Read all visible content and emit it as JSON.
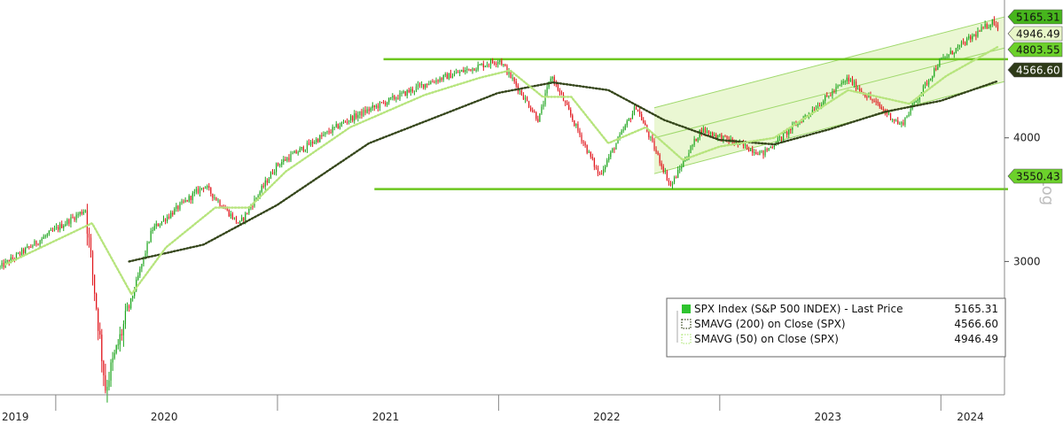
{
  "chart_data": {
    "type": "candlestick",
    "yscale": "log",
    "ylabel": "Log",
    "ylim": [
      2200,
      5400
    ],
    "xlim": [
      "2019-10-01",
      "2024-04-15"
    ],
    "y_ticks": [
      3000,
      4000
    ],
    "x_ticks": [
      "2019",
      "2020",
      "2021",
      "2022",
      "2023",
      "2024"
    ],
    "horizontal_levels": [
      4803.55,
      3550.43
    ],
    "trend_channel": {
      "start": "2022-09-15",
      "end": "2024-04-15",
      "upper": [
        4290,
        5300
      ],
      "mid": [
        4000,
        4930
      ],
      "lower": [
        3680,
        4560
      ]
    },
    "price_tags": [
      {
        "label": "5165.31",
        "value": 5165.31,
        "bg": "#46b51c",
        "fg": "#111111"
      },
      {
        "label": "4946.49",
        "value": 4946.49,
        "bg": "#e8f7c8",
        "fg": "#111111"
      },
      {
        "label": "4803.55",
        "value": 4803.55,
        "bg": "#6cd12b",
        "fg": "#111111"
      },
      {
        "label": "4566.60",
        "value": 4566.6,
        "bg": "#2e3a18",
        "fg": "#ffffff"
      },
      {
        "label": "3550.43",
        "value": 3550.43,
        "bg": "#6cd12b",
        "fg": "#111111"
      }
    ],
    "series": [
      {
        "name": "SPX Index (S&P 500 INDEX) - Last Price",
        "last": "5165.31",
        "key_points": [
          [
            "2019-10-01",
            2960
          ],
          [
            "2019-12-31",
            3230
          ],
          [
            "2020-02-19",
            3386
          ],
          [
            "2020-03-23",
            2237
          ],
          [
            "2020-06-08",
            3232
          ],
          [
            "2020-09-02",
            3580
          ],
          [
            "2020-10-30",
            3270
          ],
          [
            "2020-12-31",
            3756
          ],
          [
            "2021-04-30",
            4181
          ],
          [
            "2021-09-02",
            4537
          ],
          [
            "2021-11-18",
            4704
          ],
          [
            "2022-01-03",
            4796
          ],
          [
            "2022-03-08",
            4170
          ],
          [
            "2022-03-29",
            4630
          ],
          [
            "2022-06-16",
            3666
          ],
          [
            "2022-08-16",
            4305
          ],
          [
            "2022-10-12",
            3577
          ],
          [
            "2022-12-01",
            4080
          ],
          [
            "2023-03-13",
            3855
          ],
          [
            "2023-07-31",
            4588
          ],
          [
            "2023-10-27",
            4117
          ],
          [
            "2023-12-29",
            4770
          ],
          [
            "2024-03-28",
            5254
          ],
          [
            "2024-04-05",
            5165
          ]
        ]
      },
      {
        "name": "SMAVG (200)  on Close (SPX)",
        "last": "4566.60",
        "key_points": [
          [
            "2020-05-01",
            3000
          ],
          [
            "2020-09-01",
            3120
          ],
          [
            "2020-12-31",
            3420
          ],
          [
            "2021-06-01",
            3950
          ],
          [
            "2021-12-31",
            4440
          ],
          [
            "2022-04-01",
            4550
          ],
          [
            "2022-07-01",
            4470
          ],
          [
            "2022-10-01",
            4170
          ],
          [
            "2023-01-01",
            3980
          ],
          [
            "2023-04-01",
            3940
          ],
          [
            "2023-07-01",
            4080
          ],
          [
            "2023-10-01",
            4250
          ],
          [
            "2024-01-01",
            4360
          ],
          [
            "2024-04-05",
            4566.6
          ]
        ]
      },
      {
        "name": "SMAVG (50)  on Close (SPX)",
        "last": "4946.49",
        "key_points": [
          [
            "2019-10-10",
            2980
          ],
          [
            "2020-01-15",
            3180
          ],
          [
            "2020-03-01",
            3280
          ],
          [
            "2020-05-05",
            2780
          ],
          [
            "2020-07-01",
            3100
          ],
          [
            "2020-09-20",
            3400
          ],
          [
            "2020-11-15",
            3400
          ],
          [
            "2021-01-15",
            3700
          ],
          [
            "2021-05-01",
            4100
          ],
          [
            "2021-09-01",
            4420
          ],
          [
            "2021-12-01",
            4600
          ],
          [
            "2022-01-20",
            4680
          ],
          [
            "2022-03-15",
            4400
          ],
          [
            "2022-05-01",
            4400
          ],
          [
            "2022-07-01",
            3950
          ],
          [
            "2022-09-01",
            4100
          ],
          [
            "2022-11-01",
            3800
          ],
          [
            "2023-01-01",
            3920
          ],
          [
            "2023-04-01",
            4000
          ],
          [
            "2023-08-01",
            4470
          ],
          [
            "2023-11-10",
            4330
          ],
          [
            "2024-01-10",
            4620
          ],
          [
            "2024-04-05",
            4946.49
          ]
        ]
      }
    ],
    "legend": {
      "placement": "bottom-right",
      "entries": [
        {
          "label": "SPX Index (S&P 500 INDEX) - Last Price",
          "value": "5165.31",
          "color": "#2ec42e",
          "style": "filled"
        },
        {
          "label": "SMAVG (200)  on Close (SPX)",
          "value": "4566.60",
          "color": "#3a4a1f",
          "style": "dotted"
        },
        {
          "label": "SMAVG (50)  on Close (SPX)",
          "value": "4946.49",
          "color": "#b8e986",
          "style": "dotted"
        }
      ]
    },
    "colors": {
      "up": "#1ea51e",
      "down": "#e0161c",
      "level_line": "#6cc61e",
      "channel_fill": "#eaf7d3",
      "channel_line": "#9ed86a",
      "sma200": "#34451a",
      "sma50": "#b6e47c"
    },
    "grid": false
  }
}
